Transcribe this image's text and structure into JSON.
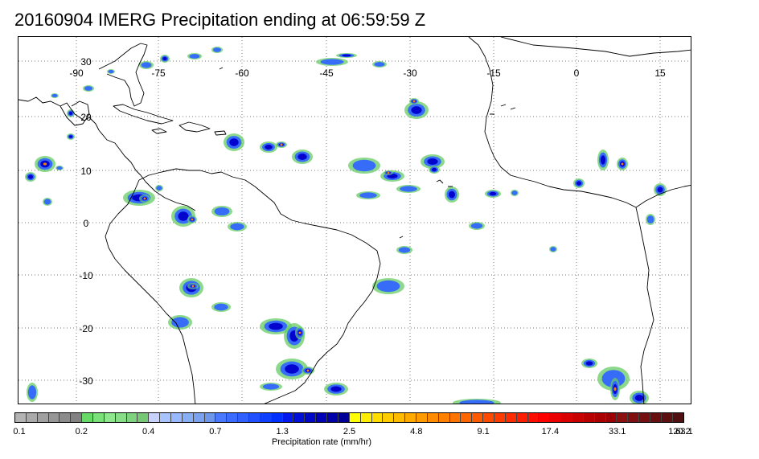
{
  "title": "20160904 IMERG Precipitation ending at 06:59:59 Z",
  "map": {
    "lon_labels": [
      "-90",
      "-75",
      "-60",
      "-45",
      "-30",
      "-15",
      "0",
      "15"
    ],
    "lat_labels": [
      "30",
      "20",
      "10",
      "0",
      "-10",
      "-20",
      "-30"
    ],
    "colors": {
      "coastline": "#000000",
      "grid": "#777777",
      "light_rain": "#66cc66",
      "moderate_rain": "#3366ff",
      "heavy_rain": "#0000cc",
      "very_heavy_rain": "#ff8800"
    }
  },
  "colorbar": {
    "label": "Precipitation rate (mm/hr)",
    "tick_labels": [
      "0.1",
      "0.2",
      "0.4",
      "0.7",
      "1.3",
      "2.5",
      "4.8",
      "9.1",
      "17.4",
      "33.1",
      "63.1",
      "120.2"
    ],
    "colors": [
      "#b4b4b4",
      "#aaaaaa",
      "#a0a0a0",
      "#969696",
      "#8c8c8c",
      "#828282",
      "#66d966",
      "#7ae07a",
      "#8ee68e",
      "#88dd88",
      "#7fd27f",
      "#76c876",
      "#c8d2ff",
      "#a8c4ff",
      "#98b8ff",
      "#88aef6",
      "#7aa2f0",
      "#6e96ea",
      "#4a78ff",
      "#3c6cff",
      "#3060ff",
      "#2050ff",
      "#1040ff",
      "#0030ff",
      "#0018ee",
      "#0010d8",
      "#0008c8",
      "#0000b8",
      "#0000a8",
      "#000098",
      "#ffff00",
      "#ffee00",
      "#ffdd00",
      "#ffcc00",
      "#ffbb00",
      "#ffaa00",
      "#ff9a00",
      "#ff8c00",
      "#ff8000",
      "#ff7400",
      "#ff6600",
      "#ff5a00",
      "#ff4a00",
      "#ff3c00",
      "#ff2c00",
      "#ff1e00",
      "#ff0e00",
      "#ff0000",
      "#ea0000",
      "#d80000",
      "#c80000",
      "#b80000",
      "#aa0000",
      "#9c0000",
      "#8c1010",
      "#801010",
      "#741010",
      "#681010",
      "#5c1010",
      "#501010"
    ]
  }
}
